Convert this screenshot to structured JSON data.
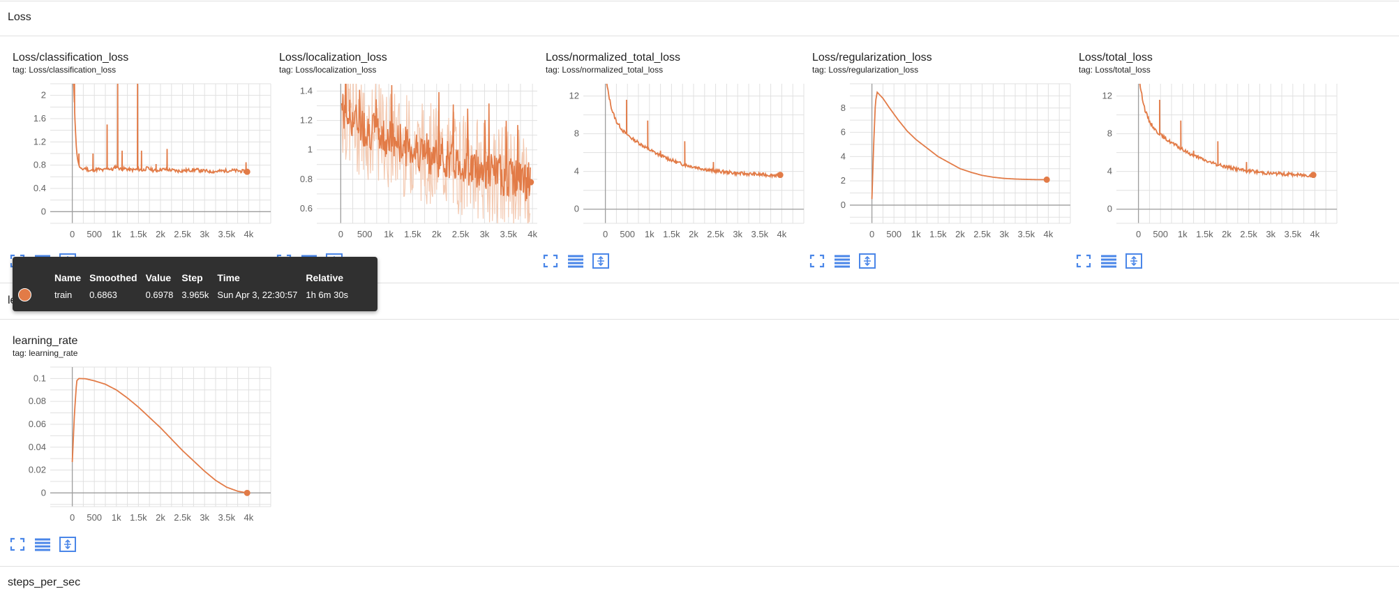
{
  "groups": {
    "loss": "Loss",
    "lr": "learning_rate",
    "steps": "steps_per_sec"
  },
  "colors": {
    "series": "#e27b47",
    "series_faint": "#f3c9b1",
    "grid": "#e0e0e0",
    "axis": "#9e9e9e",
    "icon": "#4a86e8"
  },
  "tooltip": {
    "headers": [
      "Name",
      "Smoothed",
      "Value",
      "Step",
      "Time",
      "Relative"
    ],
    "row": {
      "name": "train",
      "smoothed": "0.6863",
      "value": "0.6978",
      "step": "3.965k",
      "time": "Sun Apr 3, 22:30:57",
      "relative": "1h 6m 30s"
    }
  },
  "xticks": [
    "0",
    "500",
    "1k",
    "1.5k",
    "2k",
    "2.5k",
    "3k",
    "3.5k",
    "4k"
  ],
  "chart_data": [
    {
      "type": "line",
      "title": "Loss/classification_loss",
      "tag": "tag: Loss/classification_loss",
      "xlim": [
        -500,
        4500
      ],
      "ylim": [
        -0.2,
        2.2
      ],
      "yticks": [
        0,
        0.4,
        0.8,
        1.2,
        1.6,
        2
      ],
      "yticklabels": [
        "0",
        "0.4",
        "0.8",
        "1.2",
        "1.6",
        "2"
      ],
      "series": [
        {
          "name": "train",
          "x": [
            30,
            60,
            100,
            150,
            200,
            300,
            400,
            500,
            600,
            700,
            800,
            900,
            1000,
            1100,
            1200,
            1300,
            1400,
            1500,
            1600,
            1700,
            1800,
            1900,
            2000,
            2200,
            2400,
            2600,
            2800,
            3000,
            3200,
            3400,
            3600,
            3800,
            3965
          ],
          "y": [
            2.2,
            1.6,
            1.0,
            0.8,
            0.72,
            0.75,
            0.7,
            0.72,
            0.73,
            0.71,
            0.75,
            0.72,
            0.78,
            0.73,
            0.74,
            0.72,
            0.72,
            0.73,
            0.71,
            0.75,
            0.72,
            0.7,
            0.73,
            0.72,
            0.7,
            0.71,
            0.72,
            0.7,
            0.69,
            0.7,
            0.71,
            0.7,
            0.6863
          ],
          "spikes": [
            [
              50,
              2.2
            ],
            [
              150,
              1.0
            ],
            [
              470,
              1.0
            ],
            [
              790,
              1.5
            ],
            [
              1030,
              2.2
            ],
            [
              1130,
              1.05
            ],
            [
              1480,
              2.2
            ],
            [
              1570,
              1.05
            ],
            [
              2150,
              1.08
            ],
            [
              1900,
              0.82
            ],
            [
              3940,
              0.85
            ]
          ],
          "final": [
            3965,
            0.6863
          ]
        }
      ]
    },
    {
      "type": "line",
      "title": "Loss/localization_loss",
      "tag": "tag: Loss/localization_loss",
      "xlim": [
        -500,
        4100
      ],
      "ylim": [
        0.5,
        1.45
      ],
      "yticks": [
        0.6,
        0.8,
        1,
        1.2,
        1.4
      ],
      "yticklabels": [
        "0.6",
        "0.8",
        "1",
        "1.2",
        "1.4"
      ],
      "series": [
        {
          "name": "train",
          "noisy": true,
          "start_x": 20,
          "end_x": 3965,
          "start_y": 1.3,
          "end_y": 0.78,
          "final": [
            3965,
            0.78
          ]
        }
      ]
    },
    {
      "type": "line",
      "title": "Loss/normalized_total_loss",
      "tag": "tag: Loss/normalized_total_loss",
      "xlim": [
        -500,
        4500
      ],
      "ylim": [
        -1.5,
        13.3
      ],
      "yticks": [
        0,
        4,
        8,
        12
      ],
      "yticklabels": [
        "0",
        "4",
        "8",
        "12"
      ],
      "series": [
        {
          "name": "train",
          "x": [
            30,
            80,
            150,
            250,
            400,
            600,
            800,
            1000,
            1200,
            1400,
            1600,
            1800,
            2000,
            2200,
            2400,
            2600,
            2800,
            3000,
            3200,
            3400,
            3600,
            3800,
            3965
          ],
          "y": [
            13.3,
            12,
            10.5,
            9.3,
            8.3,
            7.5,
            6.9,
            6.3,
            5.8,
            5.4,
            5.0,
            4.7,
            4.5,
            4.3,
            4.1,
            4.0,
            3.9,
            3.8,
            3.75,
            3.7,
            3.65,
            3.6,
            3.63
          ],
          "spikes": [
            [
              480,
              11.6
            ],
            [
              960,
              9.4
            ],
            [
              1800,
              7.2
            ],
            [
              2450,
              5.0
            ],
            [
              1250,
              6.2
            ]
          ],
          "final": [
            3965,
            3.63
          ]
        }
      ]
    },
    {
      "type": "line",
      "title": "Loss/regularization_loss",
      "tag": "tag: Loss/regularization_loss",
      "xlim": [
        -500,
        4500
      ],
      "ylim": [
        -1.5,
        10
      ],
      "yticks": [
        0,
        2,
        4,
        6,
        8
      ],
      "yticklabels": [
        "0",
        "2",
        "4",
        "6",
        "8"
      ],
      "series": [
        {
          "name": "train",
          "x": [
            0,
            40,
            80,
            120,
            250,
            400,
            600,
            800,
            1000,
            1250,
            1500,
            1750,
            2000,
            2250,
            2500,
            2750,
            3000,
            3250,
            3500,
            3750,
            3965
          ],
          "y": [
            0.5,
            5,
            8.5,
            9.3,
            8.8,
            8.0,
            7.0,
            6.1,
            5.4,
            4.7,
            4.0,
            3.5,
            3.0,
            2.7,
            2.45,
            2.3,
            2.2,
            2.15,
            2.12,
            2.1,
            2.1
          ],
          "final": [
            3965,
            2.1
          ]
        }
      ]
    },
    {
      "type": "line",
      "title": "Loss/total_loss",
      "tag": "tag: Loss/total_loss",
      "xlim": [
        -500,
        4500
      ],
      "ylim": [
        -1.5,
        13.3
      ],
      "yticks": [
        0,
        4,
        8,
        12
      ],
      "yticklabels": [
        "0",
        "4",
        "8",
        "12"
      ],
      "series": [
        {
          "name": "train",
          "x": [
            30,
            80,
            150,
            250,
            400,
            600,
            800,
            1000,
            1200,
            1400,
            1600,
            1800,
            2000,
            2200,
            2400,
            2600,
            2800,
            3000,
            3200,
            3400,
            3600,
            3800,
            3965
          ],
          "y": [
            13.3,
            12,
            10.5,
            9.3,
            8.3,
            7.5,
            6.9,
            6.3,
            5.8,
            5.4,
            5.0,
            4.7,
            4.5,
            4.3,
            4.1,
            4.0,
            3.9,
            3.8,
            3.75,
            3.7,
            3.65,
            3.6,
            3.63
          ],
          "spikes": [
            [
              480,
              11.6
            ],
            [
              960,
              9.4
            ],
            [
              1800,
              7.2
            ],
            [
              2450,
              5.0
            ],
            [
              1250,
              6.2
            ]
          ],
          "final": [
            3965,
            3.63
          ]
        }
      ]
    },
    {
      "type": "line",
      "title": "learning_rate",
      "tag": "tag: learning_rate",
      "xlim": [
        -500,
        4500
      ],
      "ylim": [
        -0.012,
        0.11
      ],
      "yticks": [
        0,
        0.02,
        0.04,
        0.06,
        0.08,
        0.1
      ],
      "yticklabels": [
        "0",
        "0.02",
        "0.04",
        "0.06",
        "0.08",
        "0.1"
      ],
      "series": [
        {
          "name": "train",
          "x": [
            0,
            50,
            100,
            150,
            300,
            500,
            750,
            1000,
            1250,
            1500,
            1750,
            2000,
            2250,
            2500,
            2750,
            3000,
            3250,
            3500,
            3750,
            3965
          ],
          "y": [
            0.027,
            0.07,
            0.098,
            0.1,
            0.0998,
            0.098,
            0.095,
            0.09,
            0.083,
            0.075,
            0.066,
            0.057,
            0.047,
            0.037,
            0.028,
            0.019,
            0.011,
            0.005,
            0.0015,
            0.0
          ],
          "final": [
            3965,
            0.0
          ]
        }
      ]
    }
  ]
}
